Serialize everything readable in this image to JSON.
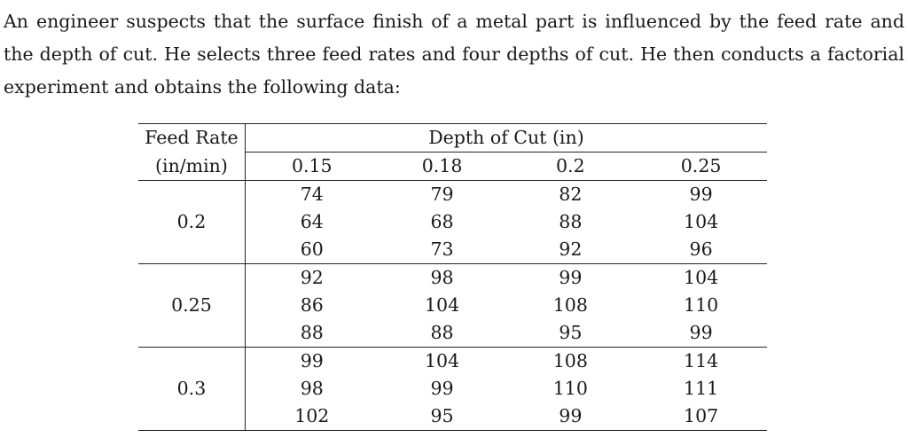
{
  "intro": {
    "lines": [
      "An engineer suspects that the surface finish of a metal part is influenced by the feed rate and",
      "the depth of cut. He selects three feed rates and four depths of cut. He then conducts a factorial",
      "experiment and obtains the following data:"
    ]
  },
  "table": {
    "row_header_line1": "Feed Rate",
    "row_header_line2": "(in/min)",
    "column_group_header": "Depth of Cut (in)",
    "depths": [
      "0.15",
      "0.18",
      "0.2",
      "0.25"
    ],
    "groups": [
      {
        "feed_rate": "0.2",
        "rows": [
          [
            "74",
            "79",
            "82",
            "99"
          ],
          [
            "64",
            "68",
            "88",
            "104"
          ],
          [
            "60",
            "73",
            "92",
            "96"
          ]
        ]
      },
      {
        "feed_rate": "0.25",
        "rows": [
          [
            "92",
            "98",
            "99",
            "104"
          ],
          [
            "86",
            "104",
            "108",
            "110"
          ],
          [
            "88",
            "88",
            "95",
            "99"
          ]
        ]
      },
      {
        "feed_rate": "0.3",
        "rows": [
          [
            "99",
            "104",
            "108",
            "114"
          ],
          [
            "98",
            "99",
            "110",
            "111"
          ],
          [
            "102",
            "95",
            "99",
            "107"
          ]
        ]
      }
    ]
  }
}
